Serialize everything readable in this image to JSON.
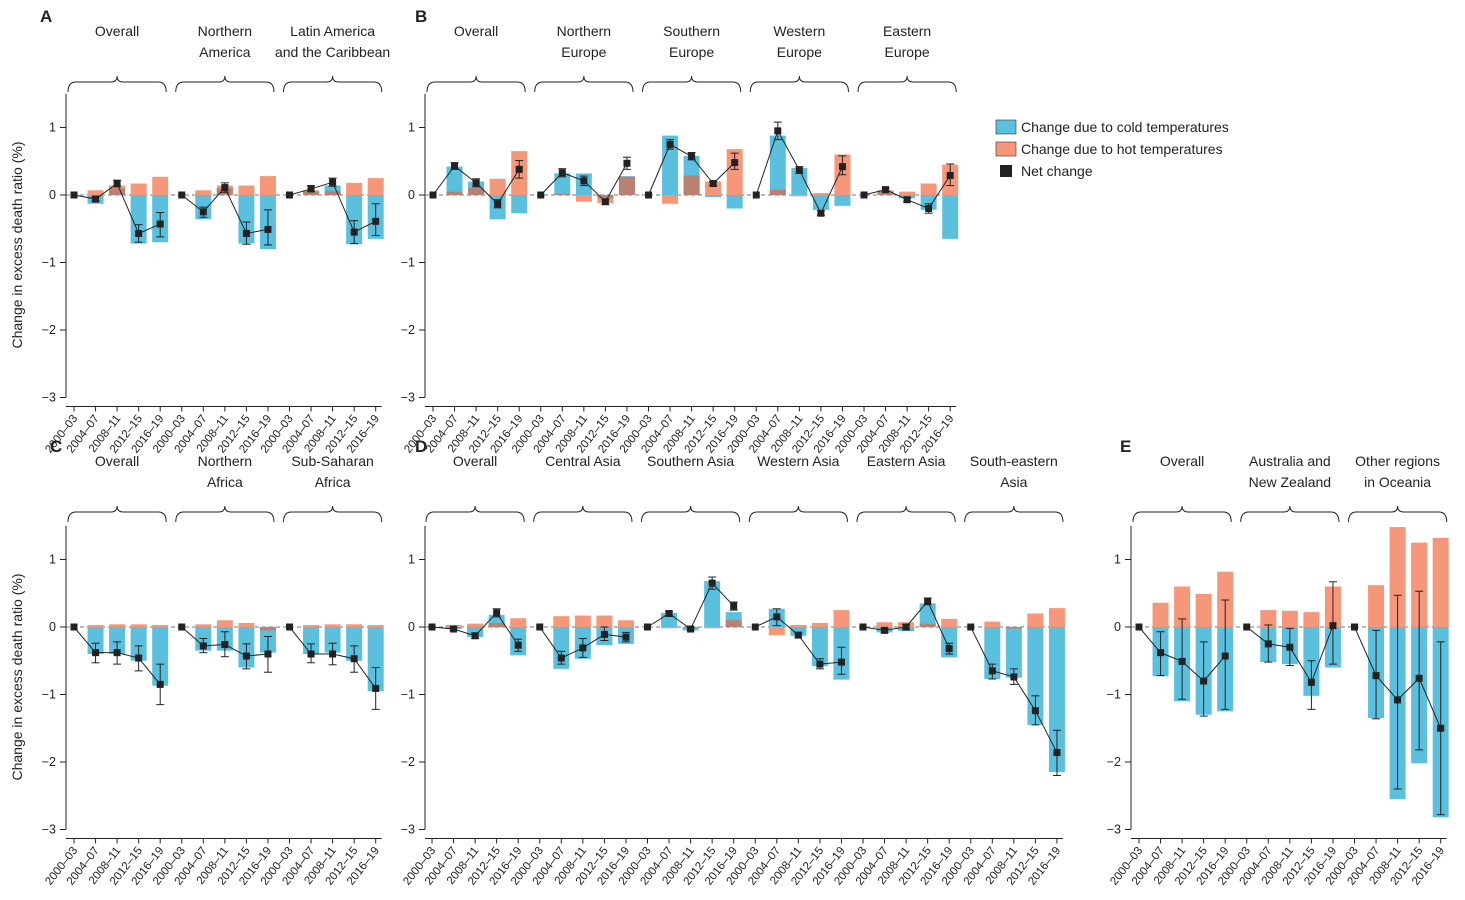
{
  "y_axis_title": "Change in excess death ratio (%)",
  "x_categories": [
    "2000–03",
    "2004–07",
    "2008–11",
    "2012–15",
    "2016–19"
  ],
  "y_ticks": [
    "1",
    "0",
    "−1",
    "−2",
    "−3"
  ],
  "legend": {
    "cold": "Change due to cold temperatures",
    "hot": "Change due to hot temperatures",
    "net": "Net change"
  },
  "colors": {
    "cold": "#5bc0de",
    "hot": "#f7977a",
    "overlap": "#b88272",
    "net": "#222222",
    "zero_line": "#777777"
  },
  "chart_data": [
    {
      "panel": "A",
      "type": "bar",
      "ylim": [
        -3,
        1.5
      ],
      "yticks": [
        1,
        0,
        -1,
        -2,
        -3
      ],
      "categories": [
        "2000–03",
        "2004–07",
        "2008–11",
        "2012–15",
        "2016–19"
      ],
      "groups": [
        {
          "label_lines": [
            "Overall"
          ],
          "cold": [
            0,
            -0.13,
            0.1,
            -0.72,
            -0.7
          ],
          "hot": [
            0,
            0.07,
            0.14,
            0.17,
            0.27
          ],
          "net": [
            0,
            -0.06,
            0.17,
            -0.57,
            -0.43
          ],
          "err_low": [
            0,
            -0.09,
            0.12,
            -0.7,
            -0.62
          ],
          "err_high": [
            0,
            -0.03,
            0.22,
            -0.44,
            -0.26
          ]
        },
        {
          "label_lines": [
            "Northern",
            "America"
          ],
          "cold": [
            0,
            -0.36,
            0.1,
            -0.72,
            -0.8
          ],
          "hot": [
            0,
            0.07,
            0.14,
            0.14,
            0.28
          ],
          "net": [
            0,
            -0.25,
            0.11,
            -0.57,
            -0.51
          ],
          "err_low": [
            0,
            -0.33,
            0.04,
            -0.73,
            -0.74
          ],
          "err_high": [
            0,
            -0.18,
            0.18,
            -0.4,
            -0.22
          ]
        },
        {
          "label_lines": [
            "Latin America",
            "and the Caribbean"
          ],
          "cold": [
            0,
            0.05,
            0.14,
            -0.73,
            -0.65
          ],
          "hot": [
            0,
            0.07,
            0.06,
            0.18,
            0.25
          ],
          "net": [
            0,
            0.09,
            0.19,
            -0.55,
            -0.39
          ],
          "err_low": [
            0,
            0.05,
            0.13,
            -0.72,
            -0.6
          ],
          "err_high": [
            0,
            0.14,
            0.25,
            -0.38,
            -0.13
          ]
        }
      ]
    },
    {
      "panel": "B",
      "type": "bar",
      "ylim": [
        -3,
        1.5
      ],
      "yticks": [
        1,
        0,
        -1,
        -2,
        -3
      ],
      "categories": [
        "2000–03",
        "2004–07",
        "2008–11",
        "2012–15",
        "2016–19"
      ],
      "groups": [
        {
          "label_lines": [
            "Overall"
          ],
          "cold": [
            0,
            0.42,
            0.2,
            -0.36,
            -0.27
          ],
          "hot": [
            0,
            0.05,
            0.1,
            0.24,
            0.65
          ],
          "net": [
            0,
            0.43,
            0.18,
            -0.13,
            0.38
          ],
          "err_low": [
            0,
            0.38,
            0.12,
            -0.19,
            0.25
          ],
          "err_high": [
            0,
            0.48,
            0.24,
            -0.07,
            0.51
          ]
        },
        {
          "label_lines": [
            "Northern",
            "Europe"
          ],
          "cold": [
            0,
            0.32,
            0.32,
            -0.05,
            0.28
          ],
          "hot": [
            0,
            0.02,
            -0.1,
            -0.12,
            0.27
          ],
          "net": [
            0,
            0.33,
            0.21,
            -0.1,
            0.47
          ],
          "err_low": [
            0,
            0.27,
            0.14,
            -0.14,
            0.38
          ],
          "err_high": [
            0,
            0.39,
            0.28,
            -0.06,
            0.56
          ]
        },
        {
          "label_lines": [
            "Southern",
            "Europe"
          ],
          "cold": [
            0,
            0.88,
            0.58,
            -0.03,
            -0.2
          ],
          "hot": [
            0,
            -0.13,
            0.29,
            0.2,
            0.68
          ],
          "net": [
            0,
            0.75,
            0.57,
            0.17,
            0.48
          ],
          "err_low": [
            0,
            0.68,
            0.52,
            0.14,
            0.38
          ],
          "err_high": [
            0,
            0.82,
            0.63,
            0.2,
            0.62
          ]
        },
        {
          "label_lines": [
            "Western",
            "Europe"
          ],
          "cold": [
            0,
            0.88,
            0.4,
            -0.22,
            -0.16
          ],
          "hot": [
            0,
            0.08,
            -0.02,
            0.03,
            0.6
          ],
          "net": [
            0,
            0.95,
            0.37,
            -0.27,
            0.42
          ],
          "err_low": [
            0,
            0.82,
            0.32,
            -0.3,
            0.3
          ],
          "err_high": [
            0,
            1.08,
            0.42,
            -0.23,
            0.58
          ]
        },
        {
          "label_lines": [
            "Eastern",
            "Europe"
          ],
          "cold": [
            0,
            0.05,
            -0.05,
            -0.22,
            -0.65
          ],
          "hot": [
            0,
            0.07,
            0.05,
            0.17,
            0.45
          ],
          "net": [
            0,
            0.08,
            -0.07,
            -0.2,
            0.29
          ],
          "err_low": [
            0,
            0.06,
            -0.1,
            -0.27,
            0.14
          ],
          "err_high": [
            0,
            0.1,
            -0.04,
            -0.13,
            0.46
          ]
        }
      ]
    },
    {
      "panel": "C",
      "type": "bar",
      "ylim": [
        -3,
        1.5
      ],
      "yticks": [
        1,
        0,
        -1,
        -2,
        -3
      ],
      "categories": [
        "2000–03",
        "2004–07",
        "2008–11",
        "2012–15",
        "2016–19"
      ],
      "groups": [
        {
          "label_lines": [
            "Overall"
          ],
          "cold": [
            0,
            -0.4,
            -0.4,
            -0.5,
            -0.87
          ],
          "hot": [
            0,
            0.03,
            0.04,
            0.04,
            0.03
          ],
          "net": [
            0,
            -0.38,
            -0.38,
            -0.46,
            -0.85
          ],
          "err_low": [
            0,
            -0.53,
            -0.55,
            -0.65,
            -1.15
          ],
          "err_high": [
            0,
            -0.24,
            -0.22,
            -0.28,
            -0.55
          ]
        },
        {
          "label_lines": [
            "Northern",
            "Africa"
          ],
          "cold": [
            0,
            -0.35,
            -0.35,
            -0.6,
            -0.38
          ],
          "hot": [
            0,
            0.04,
            0.1,
            0.06,
            -0.05
          ],
          "net": [
            0,
            -0.28,
            -0.26,
            -0.43,
            -0.4
          ],
          "err_low": [
            0,
            -0.38,
            -0.44,
            -0.62,
            -0.67
          ],
          "err_high": [
            0,
            -0.17,
            -0.07,
            -0.25,
            -0.14
          ]
        },
        {
          "label_lines": [
            "Sub-Saharan",
            "Africa"
          ],
          "cold": [
            0,
            -0.4,
            -0.38,
            -0.5,
            -0.95
          ],
          "hot": [
            0,
            0.03,
            0.04,
            0.04,
            0.03
          ],
          "net": [
            0,
            -0.4,
            -0.4,
            -0.47,
            -0.91
          ],
          "err_low": [
            0,
            -0.53,
            -0.56,
            -0.67,
            -1.22
          ],
          "err_high": [
            0,
            -0.25,
            -0.24,
            -0.28,
            -0.6
          ]
        }
      ]
    },
    {
      "panel": "D",
      "type": "bar",
      "ylim": [
        -3,
        1.5
      ],
      "yticks": [
        1,
        0,
        -1,
        -2,
        -3
      ],
      "categories": [
        "2000–03",
        "2004–07",
        "2008–11",
        "2012–15",
        "2016–19"
      ],
      "groups": [
        {
          "label_lines": [
            "Overall"
          ],
          "cold": [
            0,
            -0.03,
            -0.15,
            0.18,
            -0.42
          ],
          "hot": [
            0,
            0.03,
            0.05,
            0.06,
            0.13
          ],
          "net": [
            0,
            -0.03,
            -0.13,
            0.21,
            -0.27
          ],
          "err_low": [
            0,
            -0.05,
            -0.17,
            0.15,
            -0.36
          ],
          "err_high": [
            0,
            -0.01,
            -0.09,
            0.27,
            -0.18
          ]
        },
        {
          "label_lines": [
            "Central Asia"
          ],
          "cold": [
            0,
            -0.62,
            -0.47,
            -0.27,
            -0.25
          ],
          "hot": [
            0,
            0.16,
            0.17,
            0.17,
            0.1
          ],
          "net": [
            0,
            -0.46,
            -0.31,
            -0.11,
            -0.15
          ],
          "err_low": [
            0,
            -0.55,
            -0.45,
            -0.2,
            -0.22
          ],
          "err_high": [
            0,
            -0.36,
            -0.17,
            0.0,
            -0.08
          ]
        },
        {
          "label_lines": [
            "Southern Asia"
          ],
          "cold": [
            0,
            0.21,
            -0.05,
            0.68,
            0.22
          ],
          "hot": [
            0,
            -0.02,
            -0.01,
            -0.02,
            0.1
          ],
          "net": [
            0,
            0.2,
            -0.03,
            0.65,
            0.31
          ],
          "err_low": [
            0,
            0.17,
            -0.05,
            0.56,
            0.25
          ],
          "err_high": [
            0,
            0.23,
            -0.01,
            0.74,
            0.37
          ]
        },
        {
          "label_lines": [
            "Western Asia"
          ],
          "cold": [
            0,
            0.27,
            -0.13,
            -0.58,
            -0.78
          ],
          "hot": [
            0,
            -0.12,
            0.03,
            0.06,
            0.25
          ],
          "net": [
            0,
            0.15,
            -0.12,
            -0.55,
            -0.52
          ],
          "err_low": [
            0,
            0.02,
            -0.15,
            -0.62,
            -0.7
          ],
          "err_high": [
            0,
            0.27,
            -0.09,
            -0.47,
            -0.3
          ]
        },
        {
          "label_lines": [
            "Eastern Asia"
          ],
          "cold": [
            0,
            -0.08,
            -0.06,
            0.35,
            -0.45
          ],
          "hot": [
            0,
            0.07,
            0.07,
            0.05,
            0.12
          ],
          "net": [
            0,
            -0.05,
            0.0,
            0.38,
            -0.32
          ],
          "err_low": [
            0,
            -0.08,
            -0.04,
            0.33,
            -0.4
          ],
          "err_high": [
            0,
            -0.02,
            0.04,
            0.43,
            -0.24
          ]
        },
        {
          "label_lines": [
            "South-eastern",
            "Asia"
          ],
          "cold": [
            0,
            -0.77,
            -0.75,
            -1.45,
            -2.15
          ],
          "hot": [
            0,
            0.08,
            -0.02,
            0.2,
            0.28
          ],
          "net": [
            0,
            -0.65,
            -0.74,
            -1.24,
            -1.86
          ],
          "err_low": [
            0,
            -0.77,
            -0.85,
            -1.45,
            -2.2
          ],
          "err_high": [
            0,
            -0.55,
            -0.62,
            -1.02,
            -1.53
          ]
        }
      ]
    },
    {
      "panel": "E",
      "type": "bar",
      "ylim": [
        -3,
        1.5
      ],
      "yticks": [
        1,
        0,
        -1,
        -2,
        -3
      ],
      "categories": [
        "2000–03",
        "2004–07",
        "2008–11",
        "2012–15",
        "2016–19"
      ],
      "groups": [
        {
          "label_lines": [
            "Overall"
          ],
          "cold": [
            0,
            -0.73,
            -1.1,
            -1.3,
            -1.25
          ],
          "hot": [
            0,
            0.36,
            0.6,
            0.49,
            0.82
          ],
          "net": [
            0,
            -0.38,
            -0.51,
            -0.8,
            -0.43
          ],
          "err_low": [
            0,
            -0.72,
            -1.07,
            -1.32,
            -1.22
          ],
          "err_high": [
            0,
            -0.07,
            0.12,
            -0.22,
            0.4
          ]
        },
        {
          "label_lines": [
            "Australia and",
            "New Zealand"
          ],
          "cold": [
            0,
            -0.52,
            -0.55,
            -1.02,
            -0.6
          ],
          "hot": [
            0,
            0.25,
            0.24,
            0.22,
            0.6
          ],
          "net": [
            0,
            -0.25,
            -0.3,
            -0.82,
            0.02
          ],
          "err_low": [
            0,
            -0.52,
            -0.57,
            -1.22,
            -0.55
          ],
          "err_high": [
            0,
            0.03,
            -0.02,
            -0.5,
            0.67
          ]
        },
        {
          "label_lines": [
            "Other regions",
            "in Oceania"
          ],
          "cold": [
            0,
            -1.35,
            -2.55,
            -2.02,
            -2.82
          ],
          "hot": [
            0,
            0.62,
            1.48,
            1.25,
            1.32
          ],
          "net": [
            0,
            -0.72,
            -1.08,
            -0.76,
            -1.5
          ],
          "err_low": [
            0,
            -1.36,
            -2.4,
            -1.82,
            -2.78
          ],
          "err_high": [
            0,
            -0.05,
            0.47,
            0.53,
            -0.22
          ]
        }
      ]
    }
  ]
}
